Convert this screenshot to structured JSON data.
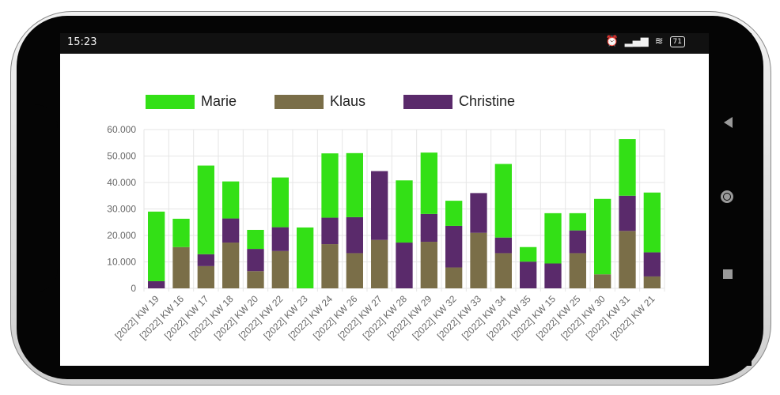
{
  "status_bar": {
    "time": "15:23",
    "battery": "71",
    "icons": [
      "alarm-icon",
      "signal-icon",
      "wifi-icon",
      "battery-icon"
    ]
  },
  "navigation": {
    "icons": [
      "back-icon",
      "home-icon",
      "recents-icon"
    ]
  },
  "colors": {
    "marie": "#33e016",
    "klaus": "#7a6e48",
    "christine": "#5a2a6b"
  },
  "chart_data": {
    "type": "bar",
    "stacked": true,
    "legend_position": "top",
    "grid": true,
    "ylim": [
      0,
      60000
    ],
    "y_ticks": [
      "0",
      "10.000",
      "20.000",
      "30.000",
      "40.000",
      "50.000",
      "60.000"
    ],
    "categories": [
      "[2022] KW 19",
      "[2022] KW 16",
      "[2022] KW 17",
      "[2022] KW 18",
      "[2022] KW 20",
      "[2022] KW 22",
      "[2022] KW 23",
      "[2022] KW 24",
      "[2022] KW 26",
      "[2022] KW 27",
      "[2022] KW 28",
      "[2022] KW 29",
      "[2022] KW 32",
      "[2022] KW 33",
      "[2022] KW 34",
      "[2022] KW 35",
      "[2022] KW 15",
      "[2022] KW 25",
      "[2022] KW 30",
      "[2022] KW 31",
      "[2022] KW 21"
    ],
    "series": [
      {
        "name": "Klaus",
        "color": "#7a6e48",
        "values": [
          0,
          15600,
          8400,
          17300,
          6500,
          14100,
          0,
          16700,
          13300,
          18300,
          0,
          17600,
          7900,
          21000,
          13300,
          0,
          0,
          13300,
          5300,
          21700,
          4500
        ]
      },
      {
        "name": "Christine",
        "color": "#5a2a6b",
        "values": [
          2700,
          0,
          4500,
          9100,
          8400,
          9000,
          0,
          10000,
          13600,
          26000,
          17300,
          10500,
          15700,
          15000,
          5900,
          10100,
          9400,
          8600,
          0,
          13300,
          9100
        ]
      },
      {
        "name": "Marie",
        "color": "#33e016",
        "values": [
          26300,
          10700,
          33500,
          14000,
          7200,
          18800,
          23000,
          24300,
          24200,
          0,
          23500,
          23200,
          9500,
          0,
          27800,
          5500,
          19000,
          6500,
          28500,
          21400,
          22600
        ]
      }
    ],
    "legend": [
      "Marie",
      "Klaus",
      "Christine"
    ]
  }
}
